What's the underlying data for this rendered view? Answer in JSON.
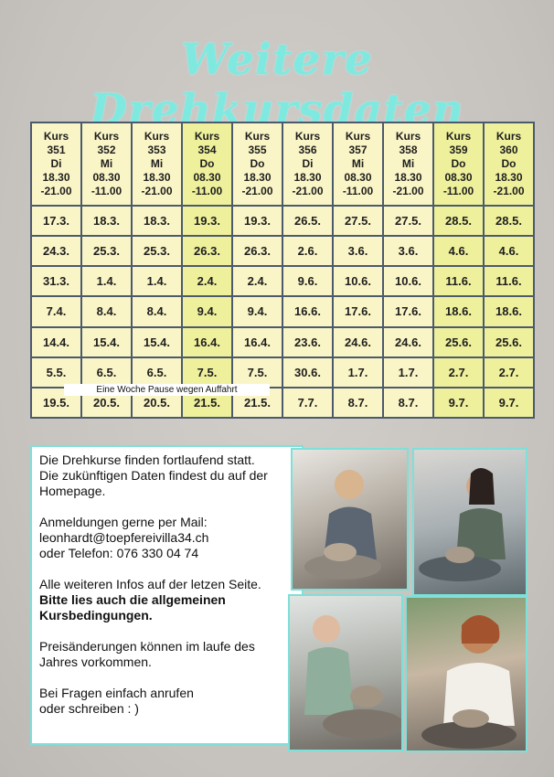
{
  "title": "Weitere Drehkursdaten",
  "table": {
    "header": [
      [
        "Kurs",
        "351",
        "Di",
        "18.30",
        "-21.00"
      ],
      [
        "Kurs",
        "352",
        "Mi",
        "08.30",
        "-11.00"
      ],
      [
        "Kurs",
        "353",
        "Mi",
        "18.30",
        "-21.00"
      ],
      [
        "Kurs",
        "354",
        "Do",
        "08.30",
        "-11.00"
      ],
      [
        "Kurs",
        "355",
        "Do",
        "18.30",
        "-21.00"
      ],
      [
        "Kurs",
        "356",
        "Di",
        "18.30",
        "-21.00"
      ],
      [
        "Kurs",
        "357",
        "Mi",
        "08.30",
        "-11.00"
      ],
      [
        "Kurs",
        "358",
        "Mi",
        "18.30",
        "-21.00"
      ],
      [
        "Kurs",
        "359",
        "Do",
        "08.30",
        "-11.00"
      ],
      [
        "Kurs",
        "360",
        "Do",
        "18.30",
        "-21.00"
      ]
    ],
    "rows": [
      [
        "17.3.",
        "18.3.",
        "18.3.",
        "19.3.",
        "19.3.",
        "26.5.",
        "27.5.",
        "27.5.",
        "28.5.",
        "28.5."
      ],
      [
        "24.3.",
        "25.3.",
        "25.3.",
        "26.3.",
        "26.3.",
        "2.6.",
        "3.6.",
        "3.6.",
        "4.6.",
        "4.6."
      ],
      [
        "31.3.",
        "1.4.",
        "1.4.",
        "2.4.",
        "2.4.",
        "9.6.",
        "10.6.",
        "10.6.",
        "11.6.",
        "11.6."
      ],
      [
        "7.4.",
        "8.4.",
        "8.4.",
        "9.4.",
        "9.4.",
        "16.6.",
        "17.6.",
        "17.6.",
        "18.6.",
        "18.6."
      ],
      [
        "14.4.",
        "15.4.",
        "15.4.",
        "16.4.",
        "16.4.",
        "23.6.",
        "24.6.",
        "24.6.",
        "25.6.",
        "25.6."
      ],
      [
        "5.5.",
        "6.5.",
        "6.5.",
        "7.5.",
        "7.5.",
        "30.6.",
        "1.7.",
        "1.7.",
        "2.7.",
        "2.7."
      ],
      [
        "19.5.",
        "20.5.",
        "20.5.",
        "21.5.",
        "21.5.",
        "7.7.",
        "8.7.",
        "8.7.",
        "9.7.",
        "9.7."
      ]
    ],
    "note": "Eine Woche Pause wegen Auffahrt"
  },
  "info": [
    "Die Drehkurse finden fortlaufend statt.",
    "Die zukünftigen Daten findest du auf der",
    "Homepage.",
    "Anmeldungen gerne per Mail:",
    "leonhardt@toepfereivilla34.ch",
    "oder Telefon: 076 330 04 74",
    "Alle weiteren Infos auf der letzen Seite.",
    "Bitte lies auch die allgemeinen",
    "Kursbedingungen.",
    "Preisänderungen können im laufe des",
    "Jahres vorkommen.",
    "Bei Fragen einfach anrufen",
    "oder schreiben : )"
  ]
}
